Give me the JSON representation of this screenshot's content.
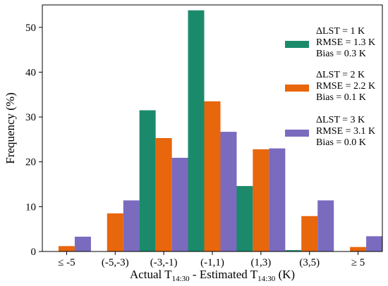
{
  "chart_data": {
    "type": "bar",
    "xlabel": {
      "prefix": "Actual T",
      "sub1": "14:30",
      "middle": " - Estimated T",
      "sub2": "14:30",
      "suffix": " (K)"
    },
    "ylabel": "Frequency (%)",
    "categories": [
      "≤ -5",
      "(-5,-3)",
      "(-3,-1)",
      "(-1,1)",
      "(1,3)",
      "(3,5)",
      "≥ 5"
    ],
    "ylim": [
      0,
      55
    ],
    "yticks": [
      0,
      10,
      20,
      30,
      40,
      50
    ],
    "grid": false,
    "legend_position": "right",
    "series": [
      {
        "name": "ΔLST = 1 K",
        "rmse": "RMSE = 1.3 K",
        "bias": "Bias = 0.3 K",
        "color": "#1b8a6b",
        "values": [
          0,
          0,
          31.5,
          53.8,
          14.6,
          0.3,
          0
        ]
      },
      {
        "name": "ΔLST = 2 K",
        "rmse": "RMSE = 2.2 K",
        "bias": "Bias = 0.1 K",
        "color": "#e8660c",
        "values": [
          1.2,
          8.5,
          25.3,
          33.5,
          22.8,
          7.9,
          1.0
        ]
      },
      {
        "name": "ΔLST = 3 K",
        "rmse": "RMSE = 3.1 K",
        "bias": "Bias = 0.0 K",
        "color": "#7b6bbf",
        "values": [
          3.3,
          11.4,
          20.9,
          26.7,
          23.0,
          11.4,
          3.4
        ]
      }
    ]
  }
}
